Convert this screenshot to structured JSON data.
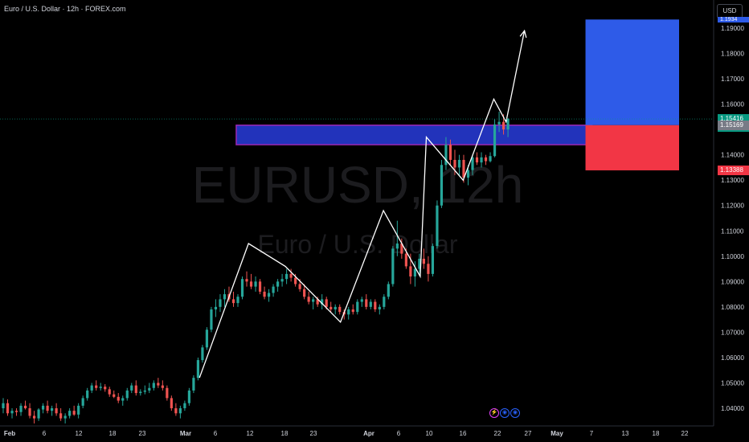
{
  "header": {
    "symbol_description": "Euro / U.S. Dollar · 12h · FOREX.com"
  },
  "watermark": {
    "symbol": "EURUSD, 12h",
    "description": "Euro / U.S. Dollar"
  },
  "currency_selector": "USD",
  "price_axis": {
    "ticks": [
      "1.19000",
      "1.18000",
      "1.17000",
      "1.16000",
      "1.15000",
      "1.14000",
      "1.13000",
      "1.12000",
      "1.11000",
      "1.10000",
      "1.09000",
      "1.08000",
      "1.07000",
      "1.06000",
      "1.05000",
      "1.04000"
    ],
    "last_price": "1.15416",
    "countdown": "03:01:40",
    "zone_top_label": "1.15169",
    "stop_label": "1.13388",
    "target_label": "1.1934"
  },
  "time_axis": {
    "labels": [
      "Feb",
      "6",
      "12",
      "18",
      "23",
      "Mar",
      "6",
      "12",
      "18",
      "23",
      "Apr",
      "6",
      "10",
      "16",
      "22",
      "27",
      "May",
      "7",
      "13",
      "18",
      "22"
    ]
  },
  "colors": {
    "background": "#000000",
    "bull_candle": "#26a69a",
    "bear_candle": "#ef5350",
    "zone_fill": "#2233bb",
    "zone_border": "#9c27b0",
    "target_fill": "#2e5be8",
    "stop_fill": "#f23645",
    "last_price": "#089981",
    "pattern_line": "#ffffff"
  },
  "chart_data": {
    "type": "candlestick",
    "timeframe": "12h",
    "candles": [
      {
        "t": "2025-01-31",
        "o": 1.04,
        "h": 1.044,
        "l": 1.038,
        "c": 1.042
      },
      {
        "t": "2025-02-01",
        "o": 1.042,
        "h": 1.0435,
        "l": 1.037,
        "c": 1.038
      },
      {
        "t": "2025-02-03",
        "o": 1.038,
        "h": 1.04,
        "l": 1.036,
        "c": 1.039
      },
      {
        "t": "2025-02-03",
        "o": 1.039,
        "h": 1.04,
        "l": 1.037,
        "c": 1.0385
      },
      {
        "t": "2025-02-04",
        "o": 1.0385,
        "h": 1.042,
        "l": 1.037,
        "c": 1.041
      },
      {
        "t": "2025-02-04",
        "o": 1.041,
        "h": 1.043,
        "l": 1.0395,
        "c": 1.04
      },
      {
        "t": "2025-02-05",
        "o": 1.04,
        "h": 1.042,
        "l": 1.036,
        "c": 1.037
      },
      {
        "t": "2025-02-05",
        "o": 1.037,
        "h": 1.039,
        "l": 1.034,
        "c": 1.036
      },
      {
        "t": "2025-02-06",
        "o": 1.036,
        "h": 1.04,
        "l": 1.035,
        "c": 1.0395
      },
      {
        "t": "2025-02-06",
        "o": 1.0395,
        "h": 1.042,
        "l": 1.038,
        "c": 1.041
      },
      {
        "t": "2025-02-07",
        "o": 1.041,
        "h": 1.043,
        "l": 1.038,
        "c": 1.039
      },
      {
        "t": "2025-02-07",
        "o": 1.039,
        "h": 1.041,
        "l": 1.037,
        "c": 1.04
      },
      {
        "t": "2025-02-10",
        "o": 1.04,
        "h": 1.042,
        "l": 1.037,
        "c": 1.038
      },
      {
        "t": "2025-02-10",
        "o": 1.038,
        "h": 1.04,
        "l": 1.035,
        "c": 1.036
      },
      {
        "t": "2025-02-11",
        "o": 1.036,
        "h": 1.038,
        "l": 1.034,
        "c": 1.037
      },
      {
        "t": "2025-02-11",
        "o": 1.037,
        "h": 1.04,
        "l": 1.036,
        "c": 1.039
      },
      {
        "t": "2025-02-12",
        "o": 1.039,
        "h": 1.041,
        "l": 1.037,
        "c": 1.0375
      },
      {
        "t": "2025-02-12",
        "o": 1.0375,
        "h": 1.042,
        "l": 1.036,
        "c": 1.041
      },
      {
        "t": "2025-02-13",
        "o": 1.041,
        "h": 1.045,
        "l": 1.04,
        "c": 1.044
      },
      {
        "t": "2025-02-13",
        "o": 1.044,
        "h": 1.048,
        "l": 1.043,
        "c": 1.047
      },
      {
        "t": "2025-02-14",
        "o": 1.047,
        "h": 1.05,
        "l": 1.046,
        "c": 1.049
      },
      {
        "t": "2025-02-14",
        "o": 1.049,
        "h": 1.051,
        "l": 1.047,
        "c": 1.048
      },
      {
        "t": "2025-02-17",
        "o": 1.048,
        "h": 1.05,
        "l": 1.047,
        "c": 1.0485
      },
      {
        "t": "2025-02-17",
        "o": 1.0485,
        "h": 1.0495,
        "l": 1.0465,
        "c": 1.0475
      },
      {
        "t": "2025-02-18",
        "o": 1.0475,
        "h": 1.0485,
        "l": 1.0445,
        "c": 1.0455
      },
      {
        "t": "2025-02-18",
        "o": 1.0455,
        "h": 1.047,
        "l": 1.044,
        "c": 1.0445
      },
      {
        "t": "2025-02-19",
        "o": 1.0445,
        "h": 1.046,
        "l": 1.042,
        "c": 1.043
      },
      {
        "t": "2025-02-19",
        "o": 1.043,
        "h": 1.045,
        "l": 1.041,
        "c": 1.044
      },
      {
        "t": "2025-02-20",
        "o": 1.044,
        "h": 1.048,
        "l": 1.043,
        "c": 1.047
      },
      {
        "t": "2025-02-20",
        "o": 1.047,
        "h": 1.05,
        "l": 1.046,
        "c": 1.049
      },
      {
        "t": "2025-02-21",
        "o": 1.049,
        "h": 1.051,
        "l": 1.045,
        "c": 1.046
      },
      {
        "t": "2025-02-21",
        "o": 1.046,
        "h": 1.0475,
        "l": 1.045,
        "c": 1.0465
      },
      {
        "t": "2025-02-24",
        "o": 1.0465,
        "h": 1.049,
        "l": 1.0455,
        "c": 1.047
      },
      {
        "t": "2025-02-24",
        "o": 1.047,
        "h": 1.05,
        "l": 1.046,
        "c": 1.048
      },
      {
        "t": "2025-02-25",
        "o": 1.048,
        "h": 1.051,
        "l": 1.047,
        "c": 1.05
      },
      {
        "t": "2025-02-25",
        "o": 1.05,
        "h": 1.052,
        "l": 1.048,
        "c": 1.049
      },
      {
        "t": "2025-02-26",
        "o": 1.049,
        "h": 1.051,
        "l": 1.047,
        "c": 1.048
      },
      {
        "t": "2025-02-26",
        "o": 1.048,
        "h": 1.049,
        "l": 1.043,
        "c": 1.044
      },
      {
        "t": "2025-02-27",
        "o": 1.044,
        "h": 1.045,
        "l": 1.039,
        "c": 1.04
      },
      {
        "t": "2025-02-27",
        "o": 1.04,
        "h": 1.042,
        "l": 1.037,
        "c": 1.038
      },
      {
        "t": "2025-02-28",
        "o": 1.038,
        "h": 1.041,
        "l": 1.036,
        "c": 1.04
      },
      {
        "t": "2025-02-28",
        "o": 1.04,
        "h": 1.043,
        "l": 1.039,
        "c": 1.042
      },
      {
        "t": "2025-03-03",
        "o": 1.042,
        "h": 1.048,
        "l": 1.041,
        "c": 1.047
      },
      {
        "t": "2025-03-03",
        "o": 1.047,
        "h": 1.053,
        "l": 1.046,
        "c": 1.052
      },
      {
        "t": "2025-03-04",
        "o": 1.052,
        "h": 1.06,
        "l": 1.051,
        "c": 1.059
      },
      {
        "t": "2025-03-04",
        "o": 1.059,
        "h": 1.065,
        "l": 1.058,
        "c": 1.064
      },
      {
        "t": "2025-03-05",
        "o": 1.064,
        "h": 1.072,
        "l": 1.063,
        "c": 1.071
      },
      {
        "t": "2025-03-05",
        "o": 1.071,
        "h": 1.08,
        "l": 1.07,
        "c": 1.079
      },
      {
        "t": "2025-03-06",
        "o": 1.079,
        "h": 1.083,
        "l": 1.076,
        "c": 1.08
      },
      {
        "t": "2025-03-06",
        "o": 1.08,
        "h": 1.085,
        "l": 1.078,
        "c": 1.083
      },
      {
        "t": "2025-03-07",
        "o": 1.083,
        "h": 1.087,
        "l": 1.08,
        "c": 1.085
      },
      {
        "t": "2025-03-07",
        "o": 1.085,
        "h": 1.088,
        "l": 1.082,
        "c": 1.083
      },
      {
        "t": "2025-03-10",
        "o": 1.083,
        "h": 1.086,
        "l": 1.08,
        "c": 1.0815
      },
      {
        "t": "2025-03-10",
        "o": 1.0815,
        "h": 1.085,
        "l": 1.08,
        "c": 1.084
      },
      {
        "t": "2025-03-11",
        "o": 1.084,
        "h": 1.092,
        "l": 1.083,
        "c": 1.091
      },
      {
        "t": "2025-03-11",
        "o": 1.091,
        "h": 1.094,
        "l": 1.088,
        "c": 1.09
      },
      {
        "t": "2025-03-12",
        "o": 1.09,
        "h": 1.093,
        "l": 1.087,
        "c": 1.088
      },
      {
        "t": "2025-03-12",
        "o": 1.088,
        "h": 1.092,
        "l": 1.086,
        "c": 1.09
      },
      {
        "t": "2025-03-13",
        "o": 1.09,
        "h": 1.091,
        "l": 1.085,
        "c": 1.086
      },
      {
        "t": "2025-03-13",
        "o": 1.086,
        "h": 1.088,
        "l": 1.083,
        "c": 1.084
      },
      {
        "t": "2025-03-14",
        "o": 1.084,
        "h": 1.087,
        "l": 1.082,
        "c": 1.0855
      },
      {
        "t": "2025-03-14",
        "o": 1.0855,
        "h": 1.089,
        "l": 1.084,
        "c": 1.088
      },
      {
        "t": "2025-03-17",
        "o": 1.088,
        "h": 1.091,
        "l": 1.086,
        "c": 1.09
      },
      {
        "t": "2025-03-17",
        "o": 1.09,
        "h": 1.093,
        "l": 1.088,
        "c": 1.091
      },
      {
        "t": "2025-03-18",
        "o": 1.091,
        "h": 1.095,
        "l": 1.089,
        "c": 1.093
      },
      {
        "t": "2025-03-18",
        "o": 1.093,
        "h": 1.095,
        "l": 1.09,
        "c": 1.0915
      },
      {
        "t": "2025-03-19",
        "o": 1.0915,
        "h": 1.093,
        "l": 1.088,
        "c": 1.089
      },
      {
        "t": "2025-03-19",
        "o": 1.089,
        "h": 1.091,
        "l": 1.086,
        "c": 1.087
      },
      {
        "t": "2025-03-20",
        "o": 1.087,
        "h": 1.089,
        "l": 1.083,
        "c": 1.084
      },
      {
        "t": "2025-03-20",
        "o": 1.084,
        "h": 1.086,
        "l": 1.081,
        "c": 1.082
      },
      {
        "t": "2025-03-21",
        "o": 1.082,
        "h": 1.084,
        "l": 1.079,
        "c": 1.083
      },
      {
        "t": "2025-03-21",
        "o": 1.083,
        "h": 1.084,
        "l": 1.08,
        "c": 1.081
      },
      {
        "t": "2025-03-24",
        "o": 1.081,
        "h": 1.085,
        "l": 1.079,
        "c": 1.083
      },
      {
        "t": "2025-03-24",
        "o": 1.083,
        "h": 1.084,
        "l": 1.079,
        "c": 1.08
      },
      {
        "t": "2025-03-25",
        "o": 1.08,
        "h": 1.082,
        "l": 1.078,
        "c": 1.079
      },
      {
        "t": "2025-03-25",
        "o": 1.079,
        "h": 1.081,
        "l": 1.077,
        "c": 1.08
      },
      {
        "t": "2025-03-26",
        "o": 1.08,
        "h": 1.081,
        "l": 1.077,
        "c": 1.078
      },
      {
        "t": "2025-03-26",
        "o": 1.078,
        "h": 1.079,
        "l": 1.075,
        "c": 1.077
      },
      {
        "t": "2025-03-27",
        "o": 1.077,
        "h": 1.08,
        "l": 1.075,
        "c": 1.079
      },
      {
        "t": "2025-03-27",
        "o": 1.079,
        "h": 1.081,
        "l": 1.077,
        "c": 1.078
      },
      {
        "t": "2025-03-28",
        "o": 1.078,
        "h": 1.083,
        "l": 1.077,
        "c": 1.082
      },
      {
        "t": "2025-03-28",
        "o": 1.082,
        "h": 1.084,
        "l": 1.08,
        "c": 1.083
      },
      {
        "t": "2025-03-31",
        "o": 1.083,
        "h": 1.085,
        "l": 1.079,
        "c": 1.08
      },
      {
        "t": "2025-03-31",
        "o": 1.08,
        "h": 1.083,
        "l": 1.079,
        "c": 1.082
      },
      {
        "t": "2025-04-01",
        "o": 1.082,
        "h": 1.083,
        "l": 1.078,
        "c": 1.079
      },
      {
        "t": "2025-04-01",
        "o": 1.079,
        "h": 1.081,
        "l": 1.077,
        "c": 1.08
      },
      {
        "t": "2025-04-02",
        "o": 1.08,
        "h": 1.085,
        "l": 1.079,
        "c": 1.084
      },
      {
        "t": "2025-04-02",
        "o": 1.084,
        "h": 1.09,
        "l": 1.083,
        "c": 1.089
      },
      {
        "t": "2025-04-03",
        "o": 1.089,
        "h": 1.104,
        "l": 1.088,
        "c": 1.103
      },
      {
        "t": "2025-04-03",
        "o": 1.103,
        "h": 1.114,
        "l": 1.1,
        "c": 1.105
      },
      {
        "t": "2025-04-04",
        "o": 1.105,
        "h": 1.107,
        "l": 1.099,
        "c": 1.101
      },
      {
        "t": "2025-04-04",
        "o": 1.101,
        "h": 1.103,
        "l": 1.095,
        "c": 1.096
      },
      {
        "t": "2025-04-07",
        "o": 1.096,
        "h": 1.101,
        "l": 1.089,
        "c": 1.092
      },
      {
        "t": "2025-04-07",
        "o": 1.092,
        "h": 1.098,
        "l": 1.088,
        "c": 1.095
      },
      {
        "t": "2025-04-08",
        "o": 1.095,
        "h": 1.101,
        "l": 1.093,
        "c": 1.099
      },
      {
        "t": "2025-04-08",
        "o": 1.099,
        "h": 1.103,
        "l": 1.095,
        "c": 1.097
      },
      {
        "t": "2025-04-09",
        "o": 1.097,
        "h": 1.1,
        "l": 1.09,
        "c": 1.093
      },
      {
        "t": "2025-04-09",
        "o": 1.093,
        "h": 1.105,
        "l": 1.092,
        "c": 1.104
      },
      {
        "t": "2025-04-10",
        "o": 1.104,
        "h": 1.122,
        "l": 1.103,
        "c": 1.12
      },
      {
        "t": "2025-04-10",
        "o": 1.12,
        "h": 1.138,
        "l": 1.119,
        "c": 1.136
      },
      {
        "t": "2025-04-11",
        "o": 1.136,
        "h": 1.147,
        "l": 1.134,
        "c": 1.144
      },
      {
        "t": "2025-04-11",
        "o": 1.144,
        "h": 1.146,
        "l": 1.136,
        "c": 1.138
      },
      {
        "t": "2025-04-14",
        "o": 1.138,
        "h": 1.142,
        "l": 1.132,
        "c": 1.135
      },
      {
        "t": "2025-04-14",
        "o": 1.135,
        "h": 1.14,
        "l": 1.132,
        "c": 1.138
      },
      {
        "t": "2025-04-15",
        "o": 1.138,
        "h": 1.14,
        "l": 1.129,
        "c": 1.131
      },
      {
        "t": "2025-04-15",
        "o": 1.131,
        "h": 1.136,
        "l": 1.128,
        "c": 1.134
      },
      {
        "t": "2025-04-16",
        "o": 1.134,
        "h": 1.14,
        "l": 1.132,
        "c": 1.139
      },
      {
        "t": "2025-04-16",
        "o": 1.139,
        "h": 1.141,
        "l": 1.136,
        "c": 1.137
      },
      {
        "t": "2025-04-17",
        "o": 1.137,
        "h": 1.141,
        "l": 1.135,
        "c": 1.139
      },
      {
        "t": "2025-04-17",
        "o": 1.139,
        "h": 1.14,
        "l": 1.136,
        "c": 1.1375
      },
      {
        "t": "2025-04-18",
        "o": 1.1375,
        "h": 1.141,
        "l": 1.137,
        "c": 1.1395
      },
      {
        "t": "2025-04-21",
        "o": 1.1395,
        "h": 1.154,
        "l": 1.139,
        "c": 1.152
      },
      {
        "t": "2025-04-21",
        "o": 1.152,
        "h": 1.157,
        "l": 1.149,
        "c": 1.153
      },
      {
        "t": "2025-04-22",
        "o": 1.153,
        "h": 1.156,
        "l": 1.148,
        "c": 1.15
      },
      {
        "t": "2025-04-22",
        "o": 1.15,
        "h": 1.1545,
        "l": 1.147,
        "c": 1.1542
      }
    ],
    "last_price": 1.15416,
    "ylim": [
      1.036,
      1.1934
    ],
    "supply_zone": {
      "from": 1.144,
      "to": 1.1517
    },
    "position": {
      "entry": 1.1517,
      "stop": 1.13388,
      "target": 1.1934
    },
    "pattern_path": [
      {
        "t": "2025-03-04",
        "p": 1.052
      },
      {
        "t": "2025-03-12",
        "p": 1.105
      },
      {
        "t": "2025-03-18",
        "p": 1.096
      },
      {
        "t": "2025-03-27",
        "p": 1.074
      },
      {
        "t": "2025-04-03",
        "p": 1.118
      },
      {
        "t": "2025-04-09",
        "p": 1.092
      },
      {
        "t": "2025-04-10",
        "p": 1.147
      },
      {
        "t": "2025-04-16",
        "p": 1.13
      },
      {
        "t": "2025-04-21",
        "p": 1.162
      },
      {
        "t": "2025-04-23",
        "p": 1.153
      },
      {
        "t": "2025-04-26",
        "p": 1.189
      }
    ]
  }
}
